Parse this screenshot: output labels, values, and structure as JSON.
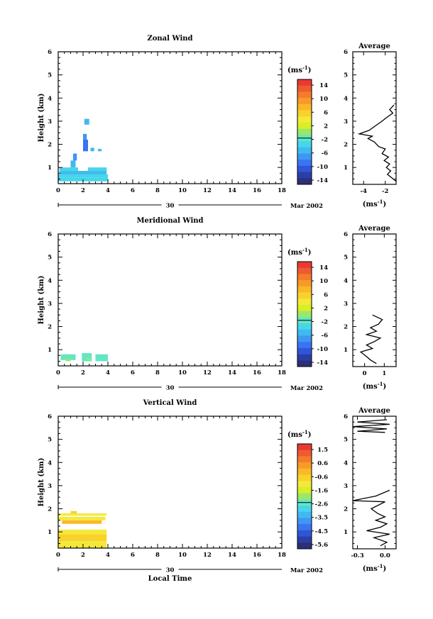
{
  "page": {
    "xlabel": "Local Time"
  },
  "colorbar": {
    "colors": [
      "#2d2f7a",
      "#2a3fa6",
      "#2f56d8",
      "#3a74f0",
      "#3d98f2",
      "#41b9f0",
      "#45d6ea",
      "#63e6c4",
      "#9be866",
      "#d8ee28",
      "#f4e93a",
      "#f8d22a",
      "#fab826",
      "#f89a28",
      "#f47c2c",
      "#ef5a30",
      "#e83a32"
    ]
  },
  "chart_data": [
    {
      "type": "heatmap",
      "title": "Zonal Wind",
      "ylabel": "Height (km)",
      "unit_label": "(ms",
      "unit_exp": "-1",
      "x_ticks": [
        "0",
        "2",
        "4",
        "6",
        "8",
        "10",
        "12",
        "14",
        "16",
        "18"
      ],
      "y_ticks": [
        "1",
        "2",
        "3",
        "4",
        "5",
        "6"
      ],
      "date_day": "30",
      "date_month": "Mar 2002",
      "xlim": [
        0,
        18
      ],
      "ylim": [
        0.3,
        6
      ],
      "colorbar_ticks": [
        "14",
        "10",
        "6",
        "2",
        "-2",
        "-6",
        "-10",
        "-14"
      ],
      "cells": [
        {
          "x0": 0.0,
          "x1": 4.0,
          "y0": 0.4,
          "y1": 0.55,
          "color": "#45d6ea"
        },
        {
          "x0": 0.0,
          "x1": 4.0,
          "y0": 0.55,
          "y1": 0.7,
          "color": "#45d6ea"
        },
        {
          "x0": 0.1,
          "x1": 3.9,
          "y0": 0.7,
          "y1": 0.85,
          "color": "#41b9f0"
        },
        {
          "x0": 0.1,
          "x1": 1.6,
          "y0": 0.85,
          "y1": 1.0,
          "color": "#45d6ea"
        },
        {
          "x0": 2.4,
          "x1": 3.9,
          "y0": 0.85,
          "y1": 1.0,
          "color": "#45d6ea"
        },
        {
          "x0": 1.0,
          "x1": 1.4,
          "y0": 1.0,
          "y1": 1.3,
          "color": "#41b9f0"
        },
        {
          "x0": 1.2,
          "x1": 1.5,
          "y0": 1.3,
          "y1": 1.6,
          "color": "#3d98f2"
        },
        {
          "x0": 2.0,
          "x1": 2.4,
          "y0": 1.7,
          "y1": 2.2,
          "color": "#3a74f0"
        },
        {
          "x0": 2.0,
          "x1": 2.3,
          "y0": 2.2,
          "y1": 2.45,
          "color": "#3d98f2"
        },
        {
          "x0": 2.6,
          "x1": 2.9,
          "y0": 1.7,
          "y1": 1.85,
          "color": "#41b9f0"
        },
        {
          "x0": 3.2,
          "x1": 3.5,
          "y0": 1.7,
          "y1": 1.8,
          "color": "#41b9f0"
        },
        {
          "x0": 2.1,
          "x1": 2.5,
          "y0": 2.85,
          "y1": 3.1,
          "color": "#41b9f0"
        }
      ],
      "average": {
        "xlim": [
          -5,
          -1
        ],
        "x_ticks": [
          "-4",
          "-2"
        ],
        "xlabel": "(ms",
        "xlabel_exp": "-1",
        "title": "Average",
        "profile": [
          [
            -1.0,
            0.4
          ],
          [
            -1.4,
            0.55
          ],
          [
            -1.8,
            0.7
          ],
          [
            -1.5,
            0.85
          ],
          [
            -1.9,
            1.0
          ],
          [
            -1.6,
            1.15
          ],
          [
            -2.1,
            1.3
          ],
          [
            -1.7,
            1.45
          ],
          [
            -2.3,
            1.6
          ],
          [
            -2.0,
            1.8
          ],
          [
            -2.6,
            1.9
          ],
          [
            -3.0,
            2.1
          ],
          [
            -3.6,
            2.25
          ],
          [
            -3.2,
            2.35
          ],
          [
            -4.4,
            2.45
          ],
          [
            -3.5,
            2.6
          ],
          [
            -2.9,
            2.8
          ],
          [
            -2.3,
            3.0
          ],
          [
            -1.9,
            3.15
          ],
          [
            -1.3,
            3.35
          ],
          [
            -1.6,
            3.5
          ],
          [
            -1.2,
            3.7
          ]
        ]
      }
    },
    {
      "type": "heatmap",
      "title": "Meridional Wind",
      "ylabel": "Height (km)",
      "unit_label": "(ms",
      "unit_exp": "-1",
      "x_ticks": [
        "0",
        "2",
        "4",
        "6",
        "8",
        "10",
        "12",
        "14",
        "16",
        "18"
      ],
      "y_ticks": [
        "1",
        "2",
        "3",
        "4",
        "5",
        "6"
      ],
      "date_day": "30",
      "date_month": "Mar 2002",
      "xlim": [
        0,
        18
      ],
      "ylim": [
        0.3,
        6
      ],
      "colorbar_ticks": [
        "14",
        "10",
        "6",
        "2",
        "-2",
        "-6",
        "-10",
        "-14"
      ],
      "cells": [
        {
          "x0": 0.2,
          "x1": 1.4,
          "y0": 0.55,
          "y1": 0.8,
          "color": "#63e6c4"
        },
        {
          "x0": 1.9,
          "x1": 2.7,
          "y0": 0.5,
          "y1": 0.85,
          "color": "#63e6c4"
        },
        {
          "x0": 3.0,
          "x1": 4.0,
          "y0": 0.5,
          "y1": 0.8,
          "color": "#63e6c4"
        },
        {
          "x0": 0.6,
          "x1": 1.0,
          "y0": 0.5,
          "y1": 0.6,
          "color": "#9be866"
        },
        {
          "x0": 2.3,
          "x1": 2.6,
          "y0": 0.55,
          "y1": 0.65,
          "color": "#9be866"
        }
      ],
      "average": {
        "xlim": [
          -0.6,
          1.6
        ],
        "x_ticks": [
          "0",
          "1"
        ],
        "xlabel": "(ms",
        "xlabel_exp": "-1",
        "title": "Average",
        "profile": [
          [
            0.6,
            0.4
          ],
          [
            0.3,
            0.55
          ],
          [
            0.1,
            0.7
          ],
          [
            -0.2,
            0.9
          ],
          [
            0.4,
            1.05
          ],
          [
            0.1,
            1.2
          ],
          [
            0.5,
            1.35
          ],
          [
            0.8,
            1.5
          ],
          [
            0.1,
            1.65
          ],
          [
            0.6,
            1.8
          ],
          [
            0.3,
            1.95
          ],
          [
            0.7,
            2.1
          ],
          [
            0.9,
            2.3
          ],
          [
            0.4,
            2.5
          ]
        ]
      }
    },
    {
      "type": "heatmap",
      "title": "Vertical Wind",
      "ylabel": "Height (km)",
      "unit_label": "(ms",
      "unit_exp": "-1",
      "x_ticks": [
        "0",
        "2",
        "4",
        "6",
        "8",
        "10",
        "12",
        "14",
        "16",
        "18"
      ],
      "y_ticks": [
        "1",
        "2",
        "3",
        "4",
        "5",
        "6"
      ],
      "date_day": "30",
      "date_month": "Mar 2002",
      "xlabel": "Local Time",
      "xlim": [
        0,
        18
      ],
      "ylim": [
        0.3,
        6
      ],
      "colorbar_ticks": [
        "1.5",
        "0.6",
        "-0.6",
        "-1.6",
        "-2.6",
        "-3.5",
        "-4.5",
        "-5.6"
      ],
      "cells": [
        {
          "x0": 0.0,
          "x1": 3.9,
          "y0": 0.3,
          "y1": 0.6,
          "color": "#f4e93a"
        },
        {
          "x0": 0.0,
          "x1": 3.9,
          "y0": 0.6,
          "y1": 0.9,
          "color": "#f8d22a"
        },
        {
          "x0": 0.0,
          "x1": 3.9,
          "y0": 0.9,
          "y1": 1.1,
          "color": "#f4e93a"
        },
        {
          "x0": 0.3,
          "x1": 3.5,
          "y0": 1.35,
          "y1": 1.5,
          "color": "#fab826"
        },
        {
          "x0": 0.0,
          "x1": 3.8,
          "y0": 1.5,
          "y1": 1.65,
          "color": "#f4e93a"
        },
        {
          "x0": 0.0,
          "x1": 3.9,
          "y0": 1.7,
          "y1": 1.8,
          "color": "#f4e93a"
        },
        {
          "x0": 1.0,
          "x1": 1.5,
          "y0": 1.8,
          "y1": 1.9,
          "color": "#f8d22a"
        }
      ],
      "average": {
        "xlim": [
          -0.35,
          0.12
        ],
        "x_ticks": [
          "-0.3",
          "0.0"
        ],
        "xlabel": "(ms",
        "xlabel_exp": "-1",
        "title": "Average",
        "profile": [
          [
            -0.05,
            0.4
          ],
          [
            0.02,
            0.55
          ],
          [
            -0.12,
            0.75
          ],
          [
            0.05,
            0.9
          ],
          [
            -0.2,
            1.05
          ],
          [
            -0.05,
            1.2
          ],
          [
            0.02,
            1.35
          ],
          [
            -0.1,
            1.5
          ],
          [
            0.0,
            1.65
          ],
          [
            -0.08,
            1.8
          ],
          [
            -0.15,
            2.0
          ],
          [
            0.0,
            2.3
          ],
          [
            -0.35,
            2.35
          ],
          [
            -0.1,
            2.55
          ],
          [
            0.05,
            2.8
          ]
        ],
        "profile_top": [
          [
            0.0,
            5.3
          ],
          [
            -0.3,
            5.35
          ],
          [
            0.02,
            5.45
          ],
          [
            -0.35,
            5.55
          ],
          [
            0.05,
            5.65
          ],
          [
            -0.3,
            5.75
          ],
          [
            0.02,
            5.85
          ]
        ]
      }
    }
  ]
}
